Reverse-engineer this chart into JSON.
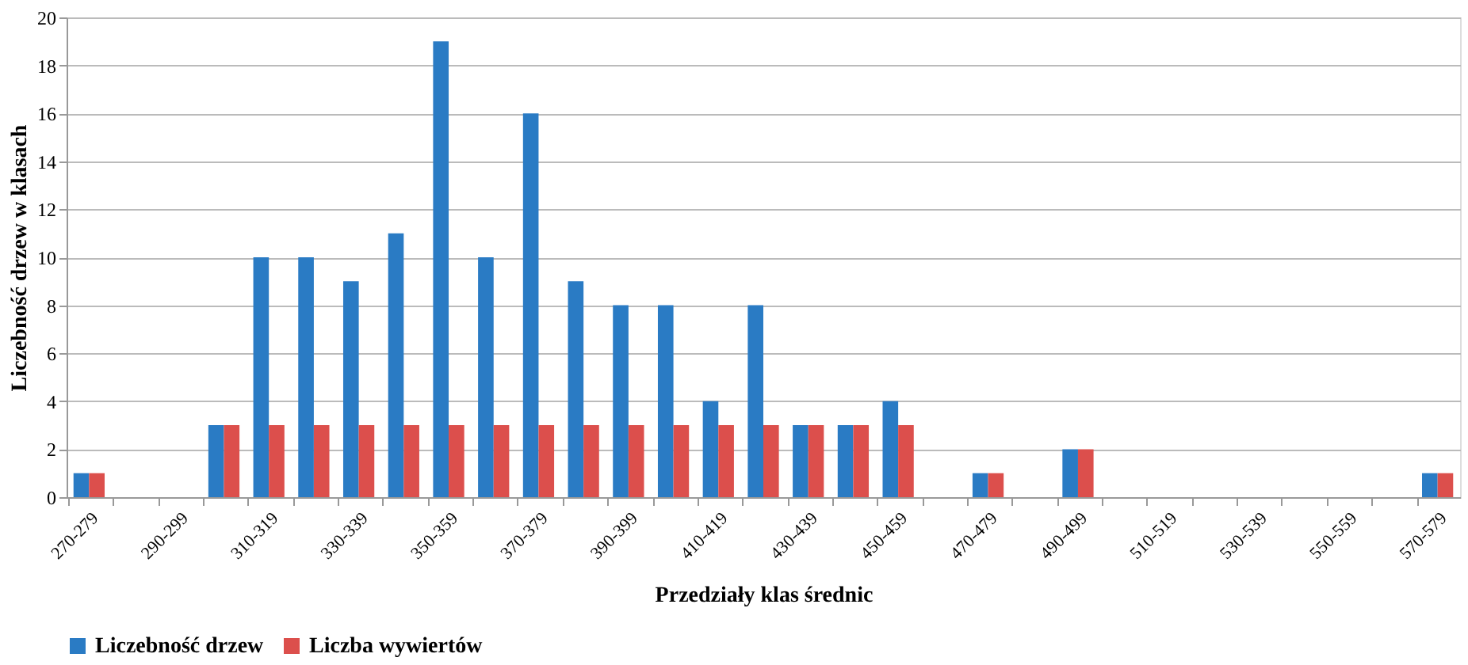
{
  "chart_data": {
    "type": "bar",
    "xlabel": "Przedziały klas średnic",
    "ylabel": "Liczebność drzew w klasach",
    "categories": [
      "270-279",
      null,
      "290-299",
      null,
      "310-319",
      null,
      "330-339",
      null,
      "350-359",
      null,
      "370-379",
      null,
      "390-399",
      null,
      "410-419",
      null,
      "430-439",
      null,
      "450-459",
      null,
      "470-479",
      null,
      "490-499",
      null,
      "510-519",
      null,
      "530-539",
      null,
      "550-559",
      null,
      "570-579"
    ],
    "series": [
      {
        "name": "Liczebność drzew",
        "color": "#2a7bc4",
        "values": [
          1,
          0,
          0,
          3,
          10,
          10,
          9,
          11,
          19,
          10,
          16,
          9,
          8,
          8,
          4,
          8,
          3,
          3,
          4,
          0,
          1,
          0,
          2,
          0,
          0,
          0,
          0,
          0,
          0,
          0,
          1
        ]
      },
      {
        "name": "Liczba wywiertów",
        "color": "#dc4f4c",
        "values": [
          1,
          0,
          0,
          3,
          3,
          3,
          3,
          3,
          3,
          3,
          3,
          3,
          3,
          3,
          3,
          3,
          3,
          3,
          3,
          0,
          1,
          0,
          2,
          0,
          0,
          0,
          0,
          0,
          0,
          0,
          1
        ]
      }
    ],
    "ylim": [
      0,
      20
    ],
    "yticks": [
      0,
      2,
      4,
      6,
      8,
      10,
      12,
      14,
      16,
      18,
      20
    ],
    "grid": "y",
    "legend": "bottom"
  }
}
